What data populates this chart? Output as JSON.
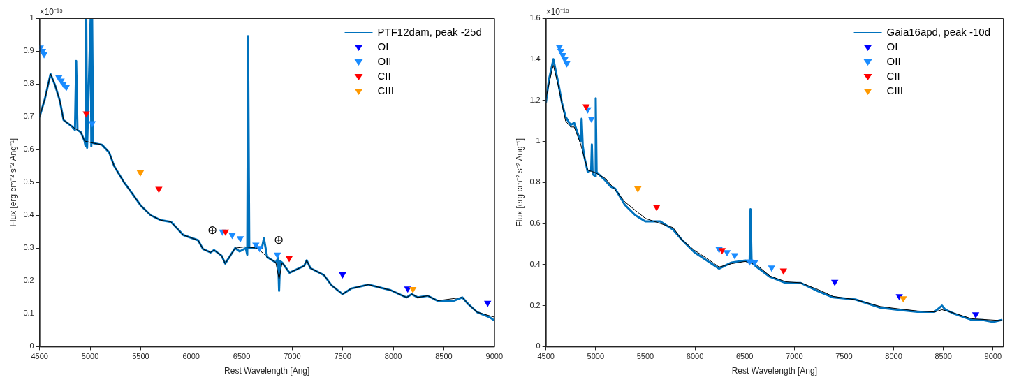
{
  "chart_data": [
    {
      "type": "line",
      "xlabel": "Rest Wavelength [Ang]",
      "ylabel": "Flux [erg cm⁻² s⁻² Ang⁻¹]",
      "xlim": [
        4500,
        9000
      ],
      "xticks": [
        4500,
        5000,
        5500,
        6000,
        6500,
        7000,
        7500,
        8000,
        8500,
        9000
      ],
      "ylim": [
        0,
        1
      ],
      "yticks": [
        0,
        0.1,
        0.2,
        0.3,
        0.4,
        0.5,
        0.6,
        0.7,
        0.8,
        0.9,
        1
      ],
      "grid": false,
      "legend": "top right",
      "annotations": [
        "×10⁻¹⁵",
        {
          "text": "⊕",
          "x": 6208,
          "y": 0.29
        },
        {
          "text": "⊕",
          "x": 6867,
          "y": 0.26
        }
      ],
      "series": [
        {
          "name": "PTF12dam, peak -25d",
          "type": "line",
          "color": "#0072bd",
          "x": [
            4500,
            4553,
            4608,
            4652,
            4700,
            4737,
            4822,
            4850,
            4862,
            4875,
            4908,
            4945,
            4955,
            4962,
            4970,
            5005,
            5012,
            5020,
            5030,
            5042,
            5116,
            5189,
            5238,
            5336,
            5396,
            5500,
            5600,
            5700,
            5800,
            5922,
            6068,
            6118,
            6191,
            6227,
            6301,
            6337,
            6435,
            6480,
            6540,
            6555,
            6563,
            6575,
            6600,
            6655,
            6700,
            6720,
            6752,
            6838,
            6860,
            6870,
            6880,
            6900,
            6973,
            7071,
            7119,
            7143,
            7180,
            7314,
            7388,
            7498,
            7583,
            7754,
            7974,
            8108,
            8133,
            8182,
            8243,
            8341,
            8438,
            8500,
            8600,
            8683,
            8744,
            8830,
            8950,
            9000
          ],
          "values": [
            0.7,
            0.755,
            0.83,
            0.797,
            0.749,
            0.69,
            0.67,
            0.66,
            0.87,
            0.66,
            0.653,
            0.626,
            0.61,
            1,
            0.605,
            1,
            0.61,
            1,
            0.62,
            0.619,
            0.615,
            0.591,
            0.55,
            0.5,
            0.475,
            0.43,
            0.4,
            0.385,
            0.38,
            0.34,
            0.324,
            0.297,
            0.287,
            0.294,
            0.277,
            0.253,
            0.3,
            0.29,
            0.3,
            0.28,
            0.945,
            0.3,
            0.3,
            0.3,
            0.3,
            0.33,
            0.273,
            0.256,
            0.27,
            0.17,
            0.26,
            0.256,
            0.225,
            0.239,
            0.246,
            0.263,
            0.239,
            0.218,
            0.187,
            0.16,
            0.177,
            0.189,
            0.172,
            0.153,
            0.15,
            0.16,
            0.15,
            0.155,
            0.14,
            0.14,
            0.14,
            0.15,
            0.129,
            0.105,
            0.09,
            0.08
          ]
        },
        {
          "type": "line",
          "color": "#000000",
          "x": [
            4500,
            4553,
            4608,
            4652,
            4700,
            4737,
            4822,
            4908,
            4945,
            5042,
            5116,
            5189,
            5238,
            5336,
            5396,
            5500,
            5600,
            5700,
            5800,
            5922,
            6068,
            6118,
            6191,
            6227,
            6301,
            6337,
            6435,
            6532,
            6655,
            6752,
            6838,
            6870,
            6900,
            6973,
            7071,
            7119,
            7143,
            7180,
            7314,
            7388,
            7498,
            7583,
            7754,
            7974,
            8108,
            8133,
            8182,
            8243,
            8341,
            8438,
            8683,
            8744,
            8830,
            9000
          ],
          "values": [
            0.7,
            0.755,
            0.83,
            0.797,
            0.749,
            0.69,
            0.67,
            0.653,
            0.626,
            0.619,
            0.615,
            0.591,
            0.55,
            0.5,
            0.475,
            0.43,
            0.4,
            0.385,
            0.38,
            0.34,
            0.324,
            0.297,
            0.287,
            0.294,
            0.277,
            0.253,
            0.3,
            0.304,
            0.3,
            0.273,
            0.256,
            0.205,
            0.256,
            0.225,
            0.239,
            0.246,
            0.263,
            0.239,
            0.218,
            0.187,
            0.16,
            0.177,
            0.189,
            0.172,
            0.153,
            0.15,
            0.16,
            0.15,
            0.155,
            0.14,
            0.15,
            0.129,
            0.105,
            0.09
          ]
        },
        {
          "name": "OI",
          "type": "scatter",
          "marker": "triangle",
          "color": "#0000ff",
          "x": [
            7498,
            8143,
            8934
          ],
          "values": [
            0.22,
            0.177,
            0.133
          ]
        },
        {
          "name": "OII",
          "type": "scatter",
          "marker": "triangle",
          "color": "#1a8cff",
          "x": [
            4507,
            4529,
            4544,
            4690,
            4713,
            4735,
            4764,
            5020,
            6310,
            6406,
            6486,
            6640,
            6677,
            6853
          ],
          "values": [
            0.91,
            0.9,
            0.89,
            0.82,
            0.81,
            0.8,
            0.79,
            0.68,
            0.35,
            0.34,
            0.33,
            0.31,
            0.3,
            0.28
          ]
        },
        {
          "name": "CII",
          "type": "scatter",
          "marker": "triangle",
          "color": "#ff0000",
          "x": [
            4962,
            5680,
            6340,
            6970
          ],
          "values": [
            0.71,
            0.48,
            0.35,
            0.27
          ]
        },
        {
          "name": "CIII",
          "type": "scatter",
          "marker": "triangle",
          "color": "#ff9900",
          "x": [
            5497,
            8194
          ],
          "values": [
            0.53,
            0.175
          ]
        }
      ]
    },
    {
      "type": "line",
      "xlabel": "Rest Wavelength [Ang]",
      "ylabel": "Flux [erg cm⁻² s⁻² Ang⁻¹]",
      "xlim": [
        4500,
        9100
      ],
      "xticks": [
        4500,
        5000,
        5500,
        6000,
        6500,
        7000,
        7500,
        8000,
        8500,
        9000
      ],
      "ylim": [
        0,
        1.6
      ],
      "yticks": [
        0,
        0.2,
        0.4,
        0.6,
        0.8,
        1,
        1.2,
        1.4,
        1.6
      ],
      "grid": false,
      "legend": "top right",
      "annotations": [
        "×10⁻¹⁵"
      ],
      "series": [
        {
          "name": "Gaia16apd, peak -10d",
          "type": "line",
          "color": "#0072bd",
          "x": [
            4500,
            4530,
            4562,
            4575,
            4600,
            4622,
            4660,
            4697,
            4747,
            4784,
            4847,
            4859,
            4870,
            4884,
            4921,
            4955,
            4962,
            4970,
            4996,
            5001,
            5010,
            5096,
            5150,
            5196,
            5295,
            5400,
            5500,
            5650,
            5780,
            5869,
            5994,
            6119,
            6243,
            6368,
            6505,
            6550,
            6559,
            6570,
            6617,
            6755,
            6916,
            7066,
            7241,
            7390,
            7614,
            7864,
            8038,
            8238,
            8412,
            8487,
            8520,
            8612,
            8786,
            8900,
            9000,
            9085
          ],
          "values": [
            1.19,
            1.3,
            1.37,
            1.4,
            1.34,
            1.29,
            1.19,
            1.12,
            1.08,
            1.09,
            1.0,
            1.11,
            0.98,
            0.93,
            0.85,
            0.86,
            0.985,
            0.84,
            0.83,
            1.21,
            0.85,
            0.81,
            0.78,
            0.77,
            0.69,
            0.64,
            0.61,
            0.61,
            0.57,
            0.52,
            0.46,
            0.42,
            0.38,
            0.41,
            0.42,
            0.41,
            0.67,
            0.41,
            0.39,
            0.34,
            0.31,
            0.31,
            0.27,
            0.24,
            0.23,
            0.19,
            0.18,
            0.17,
            0.17,
            0.2,
            0.18,
            0.16,
            0.13,
            0.13,
            0.12,
            0.13
          ]
        },
        {
          "type": "line",
          "color": "#000000",
          "x": [
            4500,
            4562,
            4575,
            4622,
            4697,
            4747,
            4784,
            4847,
            4884,
            4921,
            4996,
            5096,
            5196,
            5295,
            5500,
            5650,
            5780,
            5869,
            5994,
            6119,
            6243,
            6368,
            6505,
            6617,
            6755,
            6916,
            7066,
            7241,
            7390,
            7614,
            7864,
            8038,
            8238,
            8412,
            8487,
            8612,
            8786,
            9085
          ],
          "values": [
            1.21,
            1.35,
            1.37,
            1.275,
            1.1,
            1.07,
            1.07,
            0.99,
            0.924,
            0.86,
            0.848,
            0.82,
            0.765,
            0.705,
            0.625,
            0.6,
            0.58,
            0.52,
            0.47,
            0.43,
            0.388,
            0.404,
            0.415,
            0.4,
            0.344,
            0.316,
            0.311,
            0.278,
            0.245,
            0.229,
            0.196,
            0.185,
            0.174,
            0.169,
            0.18,
            0.163,
            0.136,
            0.127
          ]
        },
        {
          "name": "OI",
          "type": "scatter",
          "marker": "triangle",
          "color": "#0000ff",
          "x": [
            7407,
            8057,
            8826
          ],
          "values": [
            0.315,
            0.245,
            0.157
          ]
        },
        {
          "name": "OII",
          "type": "scatter",
          "marker": "triangle",
          "color": "#1a8cff",
          "x": [
            4635,
            4650,
            4670,
            4690,
            4710,
            4921,
            4958,
            6243,
            6323,
            6400,
            6550,
            6600,
            6771
          ],
          "values": [
            1.46,
            1.44,
            1.42,
            1.4,
            1.38,
            1.155,
            1.11,
            0.475,
            0.46,
            0.445,
            0.415,
            0.41,
            0.385
          ]
        },
        {
          "name": "CII",
          "type": "scatter",
          "marker": "triangle",
          "color": "#ff0000",
          "x": [
            4904,
            5614,
            6273,
            6891
          ],
          "values": [
            1.17,
            0.68,
            0.47,
            0.37
          ]
        },
        {
          "name": "CIII",
          "type": "scatter",
          "marker": "triangle",
          "color": "#ff9900",
          "x": [
            5425,
            8097
          ],
          "values": [
            0.77,
            0.235
          ]
        }
      ]
    }
  ]
}
